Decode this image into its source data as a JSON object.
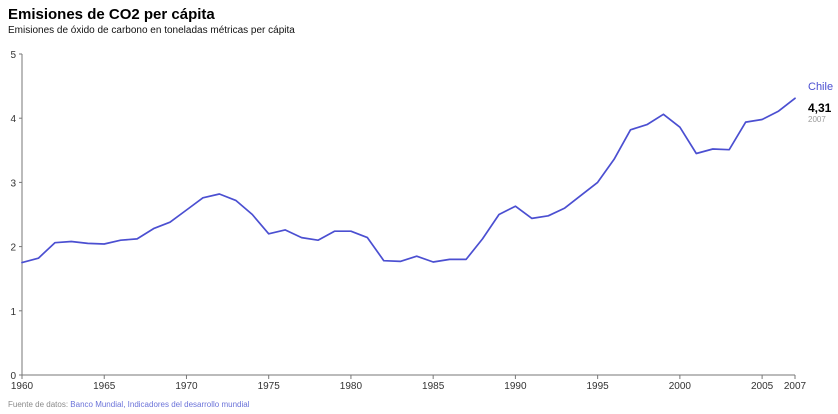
{
  "header": {
    "title": "Emisiones de CO2 per cápita",
    "subtitle": "Emisiones de óxido de carbono en toneladas métricas per cápita"
  },
  "footer": {
    "prefix": "Fuente de datos:",
    "source_link": "Banco Mundial, Indicadores del desarrollo mundial"
  },
  "callout": {
    "series_name": "Chile",
    "value": "4,31",
    "year": "2007"
  },
  "colors": {
    "series": "#4b4fd1",
    "axis": "#777777",
    "text": "#333333"
  },
  "chart_data": {
    "type": "line",
    "title": "Emisiones de CO2 per cápita",
    "subtitle": "Emisiones de óxido de carbono en toneladas métricas per cápita",
    "xlabel": "",
    "ylabel": "",
    "xlim": [
      1960,
      2007
    ],
    "ylim": [
      0,
      5
    ],
    "x_ticks": [
      1960,
      1965,
      1970,
      1975,
      1980,
      1985,
      1990,
      1995,
      2000,
      2005,
      2007
    ],
    "y_ticks": [
      0,
      1,
      2,
      3,
      4,
      5
    ],
    "grid": false,
    "series": [
      {
        "name": "Chile",
        "x": [
          1960,
          1961,
          1962,
          1963,
          1964,
          1965,
          1966,
          1967,
          1968,
          1969,
          1970,
          1971,
          1972,
          1973,
          1974,
          1975,
          1976,
          1977,
          1978,
          1979,
          1980,
          1981,
          1982,
          1983,
          1984,
          1985,
          1986,
          1987,
          1988,
          1989,
          1990,
          1991,
          1992,
          1993,
          1994,
          1995,
          1996,
          1997,
          1998,
          1999,
          2000,
          2001,
          2002,
          2003,
          2004,
          2005,
          2006,
          2007
        ],
        "values": [
          1.75,
          1.82,
          2.06,
          2.08,
          2.05,
          2.04,
          2.1,
          2.12,
          2.28,
          2.38,
          2.57,
          2.76,
          2.82,
          2.72,
          2.5,
          2.2,
          2.26,
          2.14,
          2.1,
          2.24,
          2.24,
          2.14,
          1.78,
          1.77,
          1.85,
          1.76,
          1.8,
          1.8,
          2.12,
          2.5,
          2.63,
          2.44,
          2.48,
          2.6,
          2.8,
          3.0,
          3.36,
          3.82,
          3.9,
          4.06,
          3.86,
          3.45,
          3.52,
          3.51,
          3.94,
          3.98,
          4.11,
          4.31
        ]
      }
    ]
  }
}
